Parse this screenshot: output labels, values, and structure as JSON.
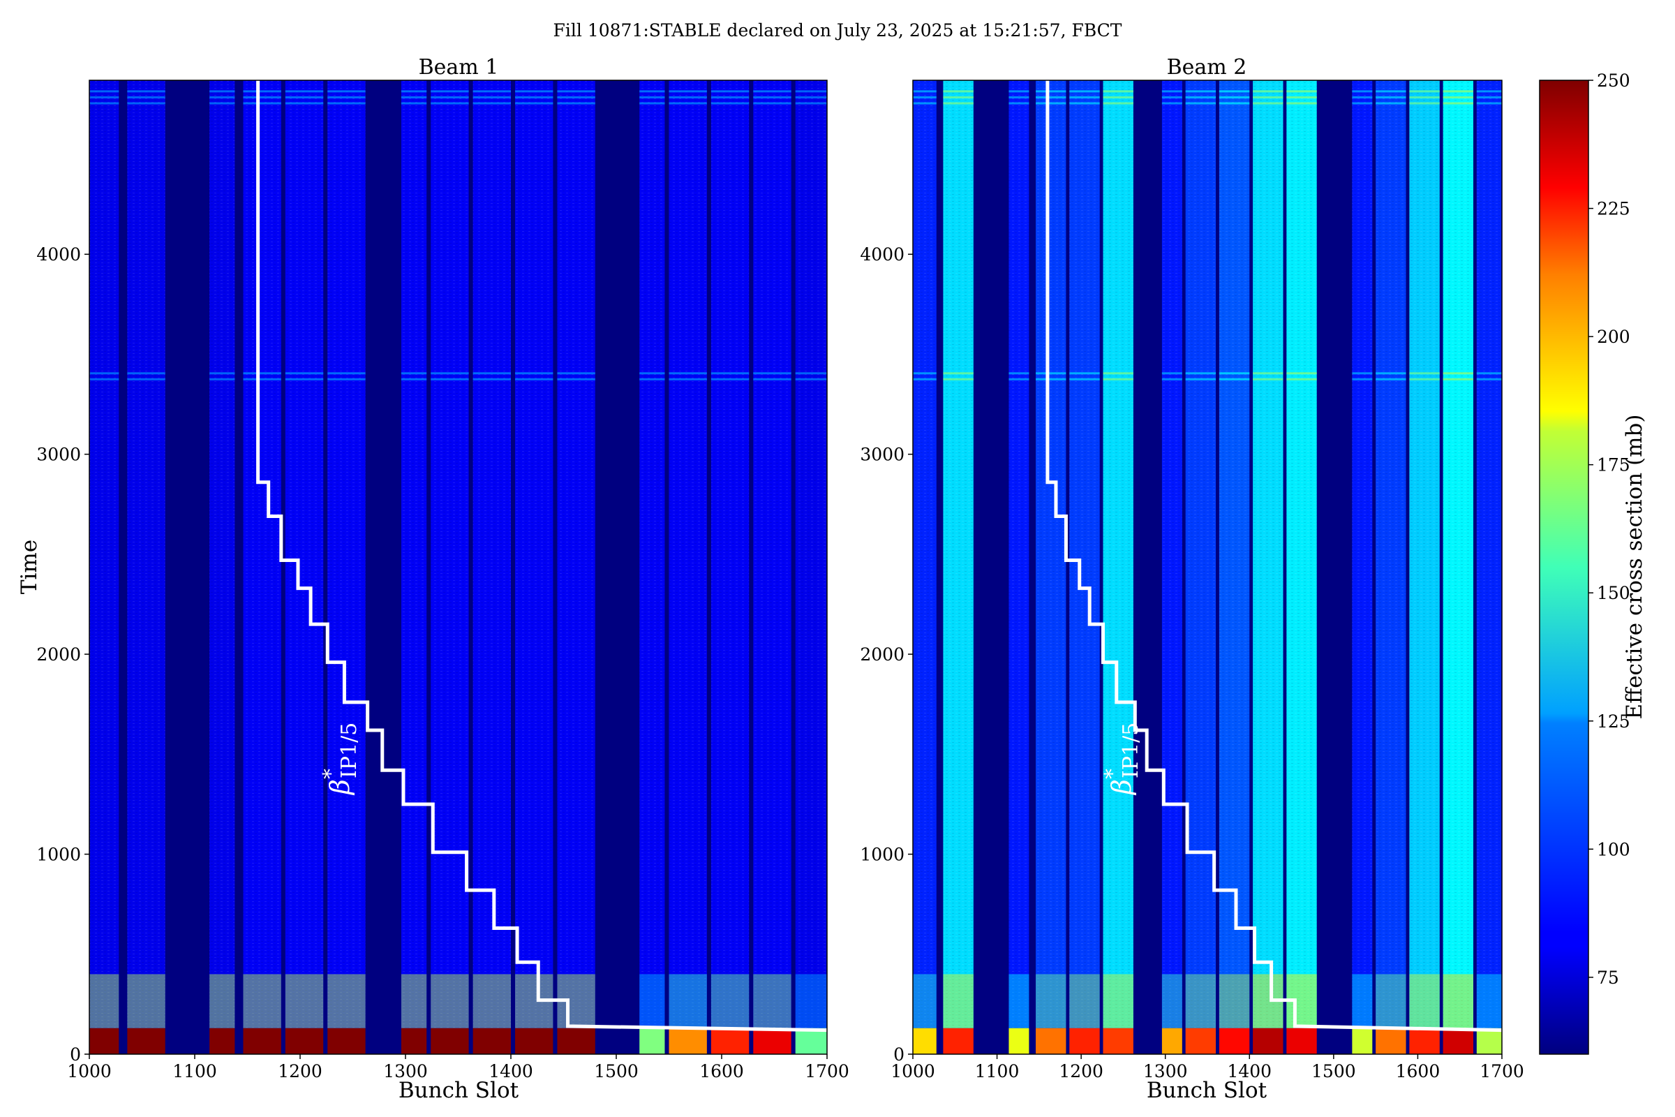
{
  "chart_data": {
    "type": "heatmap",
    "suptitle": "Fill 10871:STABLE declared on July 23, 2025 at 15:21:57, FBCT",
    "xlabel": "Bunch Slot",
    "ylabel": "Time",
    "xlim": [
      1000,
      1700
    ],
    "ylim": [
      0,
      4870
    ],
    "xticks": [
      "1000",
      "1100",
      "1200",
      "1300",
      "1400",
      "1500",
      "1600",
      "1700"
    ],
    "yticks": [
      "0",
      "1000",
      "2000",
      "3000",
      "4000"
    ],
    "colorbar": {
      "label": "Effective cross section (mb)",
      "range": [
        60,
        250
      ],
      "ticks": [
        "75",
        "100",
        "125",
        "150",
        "175",
        "200",
        "225",
        "250"
      ],
      "colormap": "jet"
    },
    "annotation": {
      "symbol": "β",
      "superscript": "*",
      "subscript": "IP1/5"
    },
    "panels": [
      {
        "title": "Beam 1",
        "filled_trains": [
          [
            1000,
            1028
          ],
          [
            1036,
            1072
          ],
          [
            1114,
            1138
          ],
          [
            1146,
            1182
          ],
          [
            1186,
            1222
          ],
          [
            1226,
            1262
          ],
          [
            1296,
            1320
          ],
          [
            1324,
            1360
          ],
          [
            1364,
            1400
          ],
          [
            1404,
            1440
          ],
          [
            1444,
            1480
          ],
          [
            1522,
            1546
          ],
          [
            1550,
            1586
          ],
          [
            1590,
            1626
          ],
          [
            1630,
            1666
          ],
          [
            1670,
            1700
          ]
        ],
        "early_level": [
          250,
          250,
          250,
          250,
          250,
          250,
          250,
          250,
          250,
          250,
          250,
          155,
          200,
          220,
          230,
          150
        ],
        "late_level": [
          80,
          80,
          80,
          82,
          82,
          82,
          82,
          82,
          82,
          82,
          82,
          82,
          82,
          82,
          82,
          80
        ]
      },
      {
        "title": "Beam 2",
        "filled_trains": [
          [
            1000,
            1028
          ],
          [
            1036,
            1072
          ],
          [
            1114,
            1138
          ],
          [
            1146,
            1182
          ],
          [
            1186,
            1222
          ],
          [
            1226,
            1262
          ],
          [
            1296,
            1320
          ],
          [
            1324,
            1360
          ],
          [
            1364,
            1400
          ],
          [
            1404,
            1440
          ],
          [
            1444,
            1480
          ],
          [
            1522,
            1546
          ],
          [
            1550,
            1586
          ],
          [
            1590,
            1626
          ],
          [
            1630,
            1666
          ],
          [
            1670,
            1700
          ]
        ],
        "early_level": [
          185,
          220,
          175,
          205,
          220,
          215,
          195,
          215,
          225,
          240,
          230,
          170,
          205,
          220,
          235,
          165
        ],
        "late_level": [
          90,
          125,
          88,
          95,
          95,
          125,
          88,
          95,
          100,
          125,
          128,
          88,
          95,
          122,
          130,
          90
        ]
      }
    ],
    "beta_star_step": {
      "name": "β*IP1/5",
      "color": "#ffffff",
      "points": [
        [
          1160,
          4870
        ],
        [
          1160,
          2860
        ],
        [
          1170,
          2860
        ],
        [
          1170,
          2690
        ],
        [
          1182,
          2690
        ],
        [
          1182,
          2470
        ],
        [
          1198,
          2470
        ],
        [
          1198,
          2330
        ],
        [
          1210,
          2330
        ],
        [
          1210,
          2150
        ],
        [
          1226,
          2150
        ],
        [
          1226,
          1960
        ],
        [
          1242,
          1960
        ],
        [
          1242,
          1760
        ],
        [
          1264,
          1760
        ],
        [
          1264,
          1620
        ],
        [
          1278,
          1620
        ],
        [
          1278,
          1420
        ],
        [
          1298,
          1420
        ],
        [
          1298,
          1250
        ],
        [
          1326,
          1250
        ],
        [
          1326,
          1010
        ],
        [
          1358,
          1010
        ],
        [
          1358,
          820
        ],
        [
          1384,
          820
        ],
        [
          1384,
          630
        ],
        [
          1406,
          630
        ],
        [
          1406,
          460
        ],
        [
          1426,
          460
        ],
        [
          1426,
          270
        ],
        [
          1454,
          270
        ],
        [
          1454,
          140
        ],
        [
          1700,
          120
        ]
      ]
    }
  }
}
